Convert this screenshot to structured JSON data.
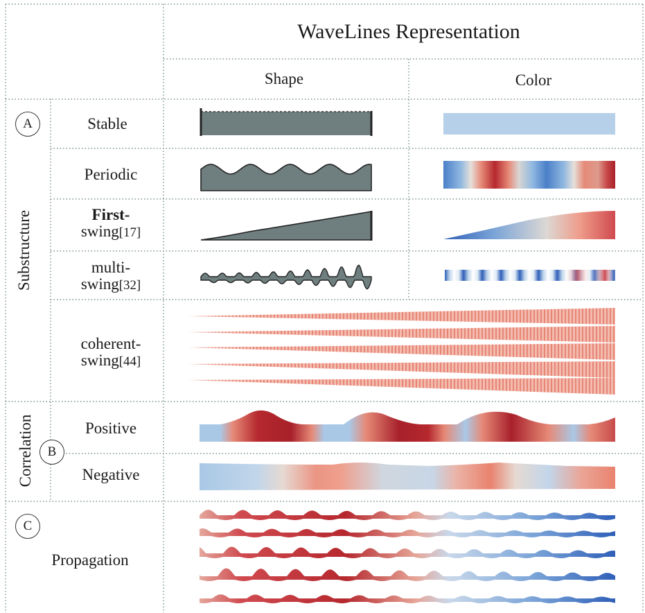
{
  "header": {
    "title": "WaveLines Representation",
    "col_shape": "Shape",
    "col_color": "Color"
  },
  "groups": {
    "A": {
      "badge": "A",
      "label": "Substructure"
    },
    "B": {
      "badge": "B",
      "label": "Correlation"
    },
    "C": {
      "badge": "C",
      "label": "Propagation"
    }
  },
  "rows": {
    "stable": {
      "label": "Stable"
    },
    "periodic": {
      "label": "Periodic"
    },
    "first_swing": {
      "label_1": "First-",
      "label_2": "swing",
      "cite": "[17]"
    },
    "multi_swing": {
      "label_1": "multi-",
      "label_2": "swing",
      "cite": "[32]"
    },
    "coherent_swing": {
      "label_1": "coherent-",
      "label_2": "swing",
      "cite": "[44]"
    },
    "positive": {
      "label": "Positive"
    },
    "negative": {
      "label": "Negative"
    }
  },
  "colors": {
    "grid_line": "#7a8f8f",
    "shape_fill": "#6f7e7e",
    "deep_blue": "#2f5fb8",
    "light_blue": "#a9c8e6",
    "neutral": "#dcd8d4",
    "salmon": "#e9836f",
    "deep_red": "#b5282e"
  }
}
